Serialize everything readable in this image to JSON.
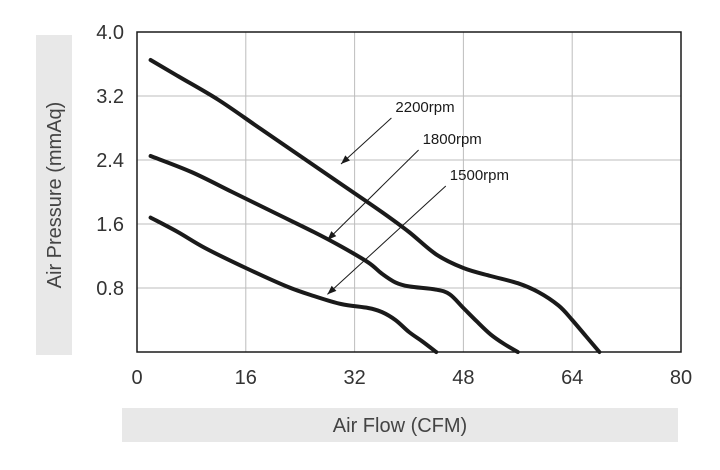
{
  "chart_data": {
    "type": "line",
    "title": "",
    "xlabel": "Air Flow (CFM)",
    "ylabel": "Air Pressure (mmAq)",
    "xlim": [
      0,
      80
    ],
    "ylim": [
      0,
      4.0
    ],
    "x_ticks": [
      "0",
      "16",
      "32",
      "48",
      "64",
      "80"
    ],
    "y_ticks": [
      "0.8",
      "1.6",
      "2.4",
      "3.2",
      "4.0"
    ],
    "grid": true,
    "series": [
      {
        "name": "2200rpm",
        "color": "#1a1a1a",
        "points": [
          [
            2,
            3.65
          ],
          [
            6,
            3.45
          ],
          [
            12,
            3.15
          ],
          [
            18,
            2.8
          ],
          [
            24,
            2.45
          ],
          [
            30,
            2.1
          ],
          [
            36,
            1.75
          ],
          [
            40,
            1.5
          ],
          [
            44,
            1.22
          ],
          [
            48,
            1.05
          ],
          [
            52,
            0.95
          ],
          [
            56,
            0.86
          ],
          [
            59,
            0.75
          ],
          [
            62,
            0.58
          ],
          [
            64,
            0.4
          ],
          [
            66,
            0.2
          ],
          [
            68,
            0.0
          ]
        ]
      },
      {
        "name": "1800rpm",
        "color": "#1a1a1a",
        "points": [
          [
            2,
            2.45
          ],
          [
            8,
            2.25
          ],
          [
            14,
            2.0
          ],
          [
            20,
            1.75
          ],
          [
            26,
            1.5
          ],
          [
            30,
            1.32
          ],
          [
            34,
            1.12
          ],
          [
            36,
            0.98
          ],
          [
            38,
            0.87
          ],
          [
            40,
            0.82
          ],
          [
            44,
            0.78
          ],
          [
            46,
            0.72
          ],
          [
            48,
            0.55
          ],
          [
            50,
            0.38
          ],
          [
            52,
            0.22
          ],
          [
            54,
            0.1
          ],
          [
            56,
            0.0
          ]
        ]
      },
      {
        "name": "1500rpm",
        "color": "#1a1a1a",
        "points": [
          [
            2,
            1.68
          ],
          [
            6,
            1.5
          ],
          [
            10,
            1.3
          ],
          [
            16,
            1.05
          ],
          [
            22,
            0.82
          ],
          [
            26,
            0.7
          ],
          [
            30,
            0.6
          ],
          [
            34,
            0.55
          ],
          [
            36,
            0.5
          ],
          [
            38,
            0.4
          ],
          [
            40,
            0.25
          ],
          [
            42,
            0.13
          ],
          [
            44,
            0.0
          ]
        ]
      }
    ],
    "annotations": [
      {
        "text": "2200rpm",
        "x": 38,
        "y": 3.0,
        "arrow_to": [
          30,
          2.35
        ]
      },
      {
        "text": "1800rpm",
        "x": 42,
        "y": 2.6,
        "arrow_to": [
          28,
          1.4
        ]
      },
      {
        "text": "1500rpm",
        "x": 46,
        "y": 2.15,
        "arrow_to": [
          28,
          0.72
        ]
      }
    ]
  }
}
